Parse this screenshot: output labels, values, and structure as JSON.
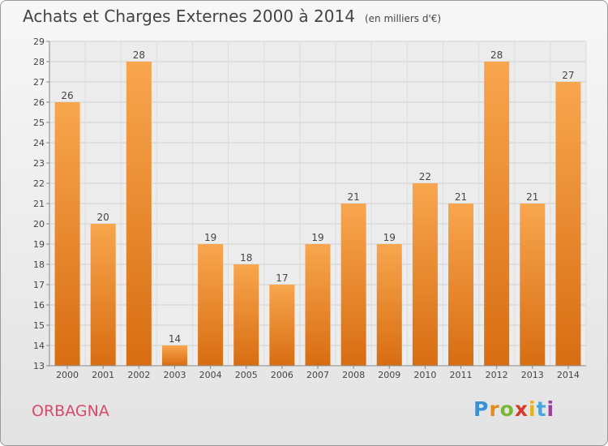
{
  "header": {
    "title": "Achats et Charges Externes 2000 à 2014",
    "subtitle": "(en milliers d'€)"
  },
  "footer": {
    "commune": "ORBAGNA",
    "logo_letters": [
      "P",
      "r",
      "o",
      "x",
      "i",
      "t",
      "i"
    ]
  },
  "colors": {
    "bar_top": "#f8a64e",
    "bar_bottom": "#d86d12",
    "commune": "#d84a6a",
    "logo": [
      "#3b8fd6",
      "#e58b1c",
      "#7ab53a",
      "#d83a2a",
      "#e7b21c",
      "#4aa3d9",
      "#9a3ea0"
    ]
  },
  "chart_data": {
    "type": "bar",
    "categories": [
      "2000",
      "2001",
      "2002",
      "2003",
      "2004",
      "2005",
      "2006",
      "2007",
      "2008",
      "2009",
      "2010",
      "2011",
      "2012",
      "2013",
      "2014"
    ],
    "values": [
      26,
      20,
      28,
      14,
      19,
      18,
      17,
      19,
      21,
      19,
      22,
      21,
      28,
      21,
      27
    ],
    "title": "Achats et Charges Externes 2000 à 2014",
    "ylim": [
      13,
      29
    ],
    "yticks": [
      13,
      14,
      15,
      16,
      17,
      18,
      19,
      20,
      21,
      22,
      23,
      24,
      25,
      26,
      27,
      28,
      29
    ],
    "grid": true,
    "data_labels": true
  }
}
